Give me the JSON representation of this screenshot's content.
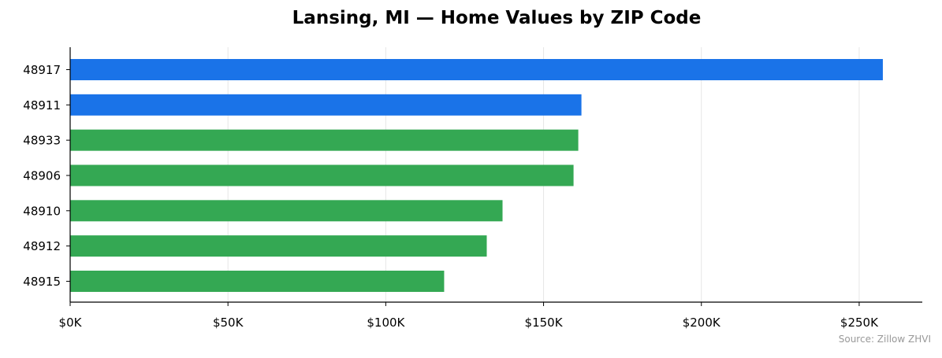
{
  "chart_data": {
    "type": "bar",
    "orientation": "horizontal",
    "title": "Lansing, MI — Home Values by ZIP Code",
    "xlabel": "",
    "ylabel": "",
    "categories": [
      "48917",
      "48911",
      "48933",
      "48906",
      "48910",
      "48912",
      "48915"
    ],
    "values": [
      257500,
      162000,
      161000,
      159500,
      137000,
      132000,
      118500
    ],
    "bar_colors": [
      "#1a73e8",
      "#1a73e8",
      "#34a853",
      "#34a853",
      "#34a853",
      "#34a853",
      "#34a853"
    ],
    "xlim": [
      0,
      270000
    ],
    "xticks": [
      0,
      50000,
      100000,
      150000,
      200000,
      250000
    ],
    "xtick_labels": [
      "$0K",
      "$50K",
      "$100K",
      "$150K",
      "$200K",
      "$250K"
    ],
    "grid": "vertical",
    "source": "Source: Zillow ZHVI"
  }
}
